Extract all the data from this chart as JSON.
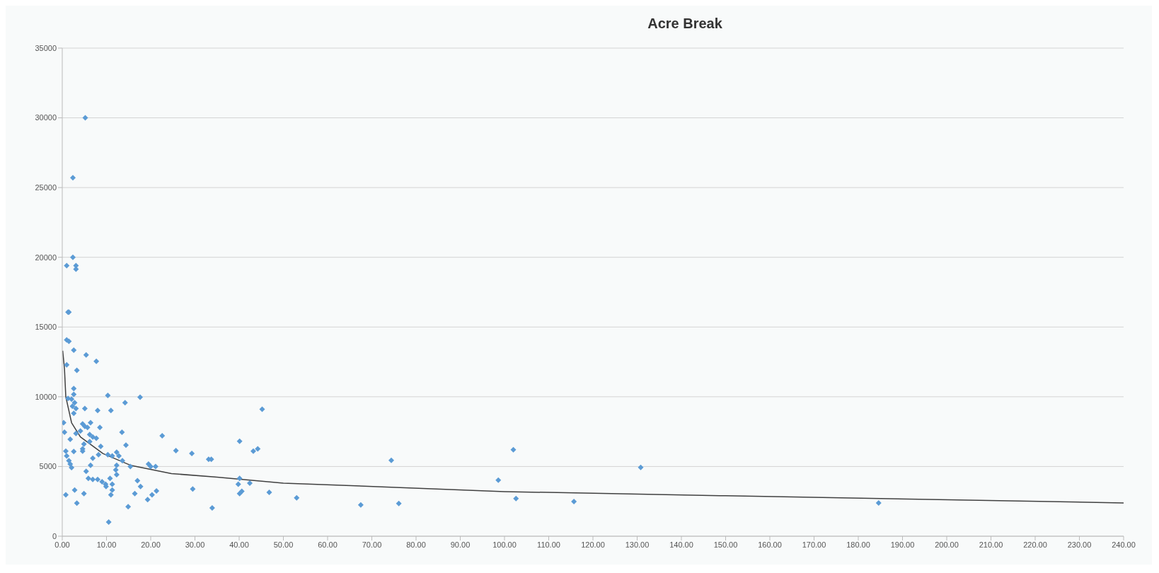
{
  "chart_data": {
    "type": "scatter",
    "title": "Acre Break",
    "xlim": [
      0,
      240
    ],
    "ylim": [
      0,
      35000
    ],
    "xticks": [
      {
        "value": 0,
        "label": "0.00"
      },
      {
        "value": 10,
        "label": "10.00"
      },
      {
        "value": 20,
        "label": "20.00"
      },
      {
        "value": 30,
        "label": "30.00"
      },
      {
        "value": 40,
        "label": "40.00"
      },
      {
        "value": 50,
        "label": "50.00"
      },
      {
        "value": 60,
        "label": "60.00"
      },
      {
        "value": 70,
        "label": "70.00"
      },
      {
        "value": 80,
        "label": "80.00"
      },
      {
        "value": 90,
        "label": "90.00"
      },
      {
        "value": 100,
        "label": "100.00"
      },
      {
        "value": 110,
        "label": "110.00"
      },
      {
        "value": 120,
        "label": "120.00"
      },
      {
        "value": 130,
        "label": "130.00"
      },
      {
        "value": 140,
        "label": "140.00"
      },
      {
        "value": 150,
        "label": "150.00"
      },
      {
        "value": 160,
        "label": "160.00"
      },
      {
        "value": 170,
        "label": "170.00"
      },
      {
        "value": 180,
        "label": "180.00"
      },
      {
        "value": 190,
        "label": "190.00"
      },
      {
        "value": 200,
        "label": "200.00"
      },
      {
        "value": 210,
        "label": "210.00"
      },
      {
        "value": 220,
        "label": "220.00"
      },
      {
        "value": 230,
        "label": "230.00"
      },
      {
        "value": 240,
        "label": "240.00"
      }
    ],
    "yticks": [
      0,
      5000,
      10000,
      15000,
      20000,
      25000,
      30000,
      35000
    ],
    "grid": "y",
    "marker": "diamond",
    "series": [
      {
        "color": "#5b9bd5",
        "x": [
          5.2,
          2.4,
          2.4,
          1.0,
          3.1,
          3.1,
          1.3,
          1.5,
          1.0,
          1.5,
          2.6,
          5.4,
          7.7,
          1.0,
          3.3,
          2.6,
          2.6,
          1.3,
          2.1,
          2.8,
          2.3,
          3.1,
          2.6,
          10.3,
          14.2,
          17.6,
          5.1,
          8.0,
          11.0,
          45.2,
          0.3,
          4.6,
          6.4,
          0.5,
          1.8,
          3.1,
          5.1,
          5.7,
          8.5,
          4.1,
          6.2,
          6.9,
          7.7,
          13.5,
          22.6,
          14.4,
          8.7,
          4.9,
          6.2,
          4.6,
          0.8,
          2.6,
          4.6,
          25.7,
          29.3,
          40.1,
          43.2,
          44.2,
          33.1,
          33.7,
          1.0,
          1.5,
          1.8,
          2.1,
          6.9,
          8.2,
          10.3,
          11.3,
          12.3,
          12.8,
          13.6,
          6.4,
          5.4,
          12.3,
          15.4,
          19.5,
          21.1,
          20.0,
          5.9,
          6.9,
          8.0,
          9.0,
          9.9,
          9.8,
          10.8,
          11.3,
          12.1,
          12.3,
          11.3,
          11.0,
          17.0,
          17.7,
          16.4,
          19.3,
          20.3,
          21.3,
          29.5,
          40.1,
          39.8,
          40.1,
          40.6,
          42.4,
          46.8,
          0.8,
          2.8,
          4.9,
          3.3,
          14.9,
          10.5,
          33.9,
          53.0,
          67.5,
          74.4,
          76.1,
          98.6,
          102,
          102.6,
          115.7,
          130.8,
          184.6
        ],
        "values": [
          30000,
          25700,
          20000,
          19400,
          19400,
          19150,
          16070,
          16070,
          14070,
          13980,
          13340,
          13000,
          12540,
          12290,
          11900,
          10590,
          10170,
          9880,
          9830,
          9580,
          9320,
          9150,
          8810,
          10090,
          9580,
          9970,
          9150,
          9020,
          9020,
          9100,
          8140,
          8050,
          8140,
          7460,
          6950,
          7370,
          7880,
          7800,
          7800,
          7540,
          7290,
          7120,
          7030,
          7460,
          7200,
          6530,
          6440,
          6610,
          6780,
          6270,
          6100,
          6070,
          6100,
          6140,
          5930,
          6810,
          6100,
          6270,
          5510,
          5510,
          5760,
          5420,
          5170,
          4920,
          5590,
          5850,
          5850,
          5760,
          6020,
          5760,
          5420,
          5090,
          4660,
          5090,
          5000,
          5170,
          5000,
          5000,
          4150,
          4070,
          4070,
          3900,
          3560,
          3730,
          4150,
          3730,
          4750,
          4410,
          3310,
          2970,
          3980,
          3560,
          3050,
          2630,
          2970,
          3250,
          3390,
          4150,
          3730,
          3050,
          3220,
          3810,
          3140,
          2970,
          3310,
          3050,
          2370,
          2120,
          1020,
          2030,
          2750,
          2240,
          5440,
          2340,
          4020,
          6200,
          2700,
          2490,
          4930,
          2390
        ]
      },
      {
        "type": "line",
        "color": "#404040",
        "marker": "none",
        "x": [
          0.1,
          0.5,
          0.8,
          2.1,
          4.1,
          9.2,
          15.4,
          24.7,
          35,
          50,
          100,
          150,
          240
        ],
        "values": [
          13300,
          12000,
          10000,
          8140,
          7120,
          5930,
          5090,
          4490,
          4240,
          3810,
          3200,
          2900,
          2390
        ]
      }
    ]
  }
}
